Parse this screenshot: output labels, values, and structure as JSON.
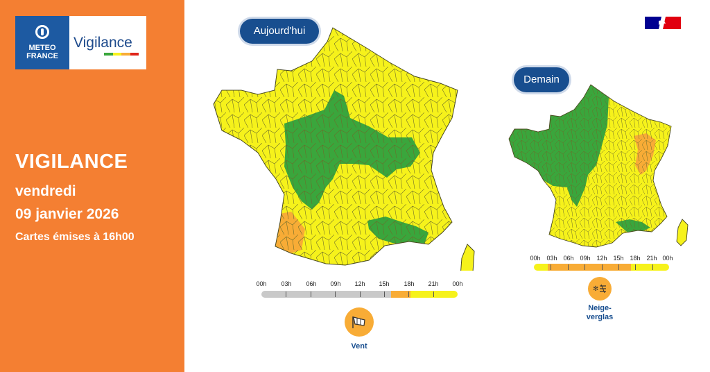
{
  "brand": {
    "logo_line1": "METEO",
    "logo_line2": "FRANCE",
    "product": "Vigilance"
  },
  "header": {
    "title": "VIGILANCE",
    "day": "vendredi",
    "date": "09 janvier 2026",
    "issued": "Cartes émises à 16h00"
  },
  "today": {
    "label": "Aujourd'hui",
    "hours": [
      "00h",
      "03h",
      "06h",
      "09h",
      "12h",
      "15h",
      "18h",
      "21h",
      "00h"
    ],
    "timeline": [
      "grey",
      "grey",
      "grey",
      "grey",
      "grey",
      "grey",
      "orange",
      "yellow",
      "yellow"
    ],
    "phenomena": [
      {
        "icon": "wind-icon",
        "label": "Vent",
        "level": "orange"
      }
    ]
  },
  "tomorrow": {
    "label": "Demain",
    "hours": [
      "00h",
      "03h",
      "06h",
      "09h",
      "12h",
      "15h",
      "18h",
      "21h",
      "00h"
    ],
    "timeline": [
      "yellow",
      "orange",
      "orange",
      "orange",
      "orange",
      "orange",
      "yellow",
      "yellow",
      "yellow"
    ],
    "phenomena": [
      {
        "icon": "snow-ice-icon",
        "label_line1": "Neige-",
        "label_line2": "verglas",
        "level": "orange"
      }
    ]
  },
  "colors": {
    "orange_panel": "#f47f32",
    "navy": "#184e8f",
    "green": "#3aa63c",
    "yellow": "#f6f21b",
    "orange": "#f8ac36",
    "grey": "#c9c9c9"
  }
}
